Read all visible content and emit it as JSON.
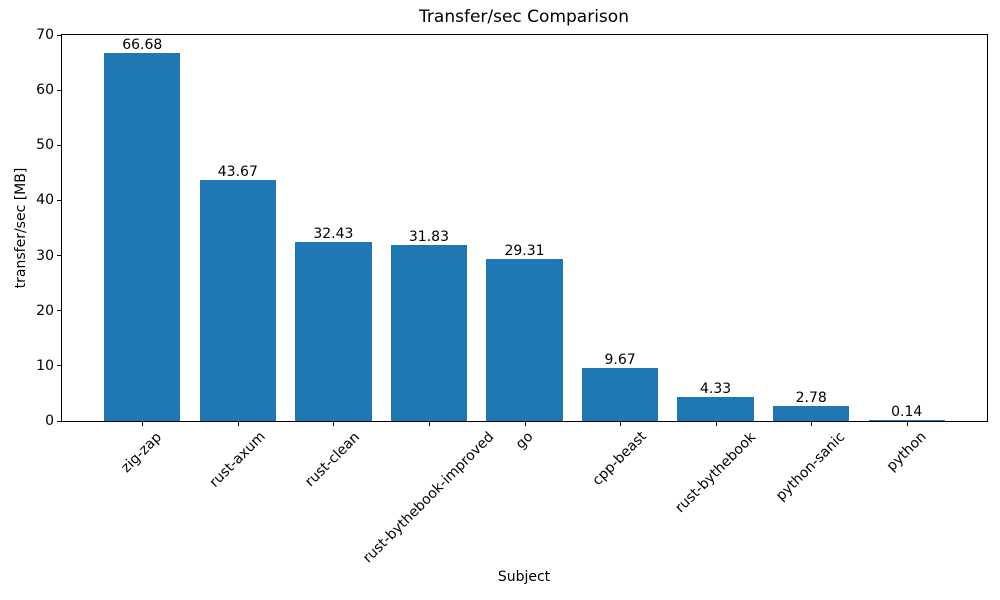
{
  "chart_data": {
    "type": "bar",
    "title": "Transfer/sec Comparison",
    "xlabel": "Subject",
    "ylabel": "transfer/sec [MB]",
    "categories": [
      "zig-zap",
      "rust-axum",
      "rust-clean",
      "rust-bythebook-improved",
      "go",
      "cpp-beast",
      "rust-bythebook",
      "python-sanic",
      "python"
    ],
    "values": [
      66.68,
      43.67,
      32.43,
      31.83,
      29.31,
      9.67,
      4.33,
      2.78,
      0.14
    ],
    "value_labels": [
      "66.68",
      "43.67",
      "32.43",
      "31.83",
      "29.31",
      "9.67",
      "4.33",
      "2.78",
      "0.14"
    ],
    "yticks": [
      0,
      10,
      20,
      30,
      40,
      50,
      60,
      70
    ],
    "ylim": [
      0,
      70
    ],
    "bar_color": "#1f77b4",
    "text_color": "#000000",
    "xtick_rotation_deg": 45,
    "grid": false,
    "legend_position": "none"
  }
}
